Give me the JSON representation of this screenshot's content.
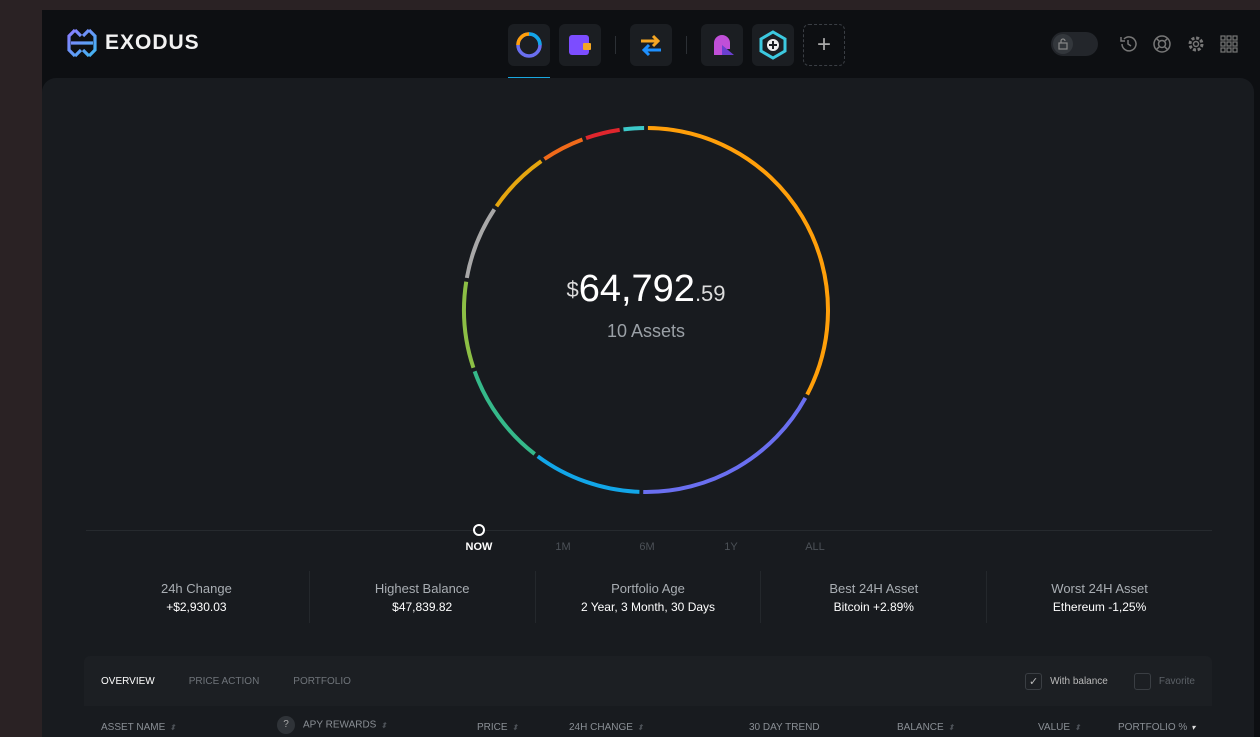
{
  "app": {
    "name": "EXODUS"
  },
  "nav": [
    {
      "name": "portfolio-nav",
      "active": true
    },
    {
      "name": "wallet-nav"
    },
    {
      "name": "exchange-nav"
    },
    {
      "name": "profile-app-nav"
    },
    {
      "name": "add-app-nav-icon"
    },
    {
      "name": "add-nav",
      "label": "+"
    }
  ],
  "header_icons": [
    "lock-toggle",
    "history-icon",
    "help-lifebuoy-icon",
    "settings-gear-icon",
    "apps-grid-icon"
  ],
  "portfolio": {
    "currency": "$",
    "amount_whole": "64,792",
    "amount_decimal": ".59",
    "assets_label": "10 Assets",
    "allocation": [
      {
        "color": "#ff9f0a",
        "fraction": 0.322
      },
      {
        "color": "#6a6ff0",
        "fraction": 0.172
      },
      {
        "color": "#12a6e8",
        "fraction": 0.097
      },
      {
        "color": "#35b98a",
        "fraction": 0.092
      },
      {
        "color": "#8cbf45",
        "fraction": 0.078
      },
      {
        "color": "#a8a8a8",
        "fraction": 0.067
      },
      {
        "color": "#e5a60f",
        "fraction": 0.058
      },
      {
        "color": "#f06a1a",
        "fraction": 0.04
      },
      {
        "color": "#e0262d",
        "fraction": 0.033
      },
      {
        "color": "#3cc9c9",
        "fraction": 0.021
      }
    ]
  },
  "time_ranges": [
    {
      "label": "NOW",
      "active": true
    },
    {
      "label": "1M"
    },
    {
      "label": "6M"
    },
    {
      "label": "1Y"
    },
    {
      "label": "ALL"
    }
  ],
  "stats": [
    {
      "label": "24h Change",
      "value": "+$2,930.03"
    },
    {
      "label": "Highest Balance",
      "value": "$47,839.82"
    },
    {
      "label": "Portfolio Age",
      "value": "2 Year, 3 Month, 30 Days"
    },
    {
      "label": "Best 24H Asset",
      "value": "Bitcoin +2.89%"
    },
    {
      "label": "Worst 24H Asset",
      "value": "Ethereum -1,25%"
    }
  ],
  "table": {
    "tabs": [
      {
        "label": "OVERVIEW",
        "active": true
      },
      {
        "label": "PRICE ACTION"
      },
      {
        "label": "PORTFOLIO"
      }
    ],
    "filters": [
      {
        "label": "With balance",
        "checked": true
      },
      {
        "label": "Favorite",
        "checked": false
      }
    ],
    "columns": [
      "ASSET NAME",
      "APY REWARDS",
      "PRICE",
      "24H CHANGE",
      "30 DAY TREND",
      "BALANCE",
      "VALUE",
      "PORTFOLIO %"
    ],
    "help_label": "?"
  }
}
